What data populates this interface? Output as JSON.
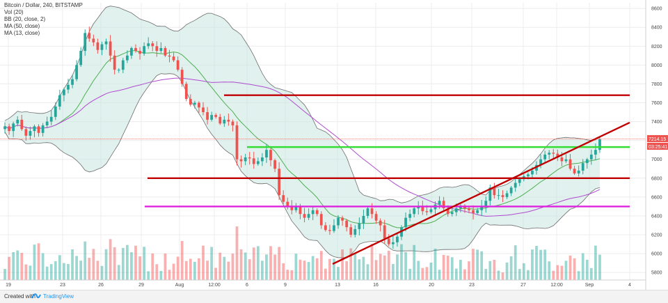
{
  "legend": {
    "symbol": "Bitcoin / Dollar, 240, BITSTAMP",
    "vol": "Vol (20)",
    "bb": "BB (20, close, 2)",
    "ma50": "MA (50, close)",
    "ma13": "MA (13, close)"
  },
  "footer": {
    "created": "Created with",
    "brand": "TradingView"
  },
  "price_label": "7214.15",
  "countdown_label": "03:25:41",
  "colors": {
    "up": "#26a69a",
    "down": "#ef5350",
    "bb_fill": "#c8e6e0",
    "bb_line": "#6e6e6e",
    "ma50": "#b04ad0",
    "ma13": "#4caf50",
    "red_level": "#c00000",
    "green_level": "#33dd33",
    "magenta_level": "#dd22dd",
    "grid": "#ececec"
  },
  "chart_data": {
    "type": "candlestick",
    "title": "Bitcoin / Dollar, 240, BITSTAMP",
    "yaxis_ticks": [
      5800,
      6000,
      6200,
      6400,
      6600,
      6800,
      7000,
      7200,
      7400,
      7600,
      7800,
      8000,
      8200,
      8400,
      8600
    ],
    "ylim": [
      5720,
      8660
    ],
    "xaxis_ticks": [
      "19",
      "23",
      "26",
      "29",
      "Aug",
      "12:00",
      "6",
      "9",
      "13",
      "16",
      "20",
      "23",
      "27",
      "12:00",
      "Sep",
      "4"
    ],
    "bar_count": 142,
    "close_approx": [
      7350,
      7300,
      7380,
      7420,
      7320,
      7250,
      7300,
      7350,
      7280,
      7360,
      7400,
      7450,
      7560,
      7680,
      7740,
      7790,
      7850,
      8000,
      8150,
      8340,
      8280,
      8240,
      8160,
      8220,
      8250,
      8100,
      7950,
      7950,
      8050,
      8100,
      8180,
      8150,
      8120,
      8200,
      8230,
      8200,
      8150,
      8180,
      8100,
      8090,
      8050,
      7950,
      7800,
      7640,
      7580,
      7600,
      7550,
      7500,
      7420,
      7470,
      7450,
      7380,
      7420,
      7400,
      7360,
      7000,
      6980,
      7020,
      7010,
      6950,
      6980,
      7020,
      7100,
      6990,
      6900,
      6620,
      6550,
      6500,
      6460,
      6500,
      6420,
      6380,
      6420,
      6460,
      6420,
      6300,
      6250,
      6240,
      6300,
      6380,
      6350,
      6280,
      6200,
      6260,
      6320,
      6400,
      6480,
      6420,
      6350,
      6300,
      6160,
      6100,
      6120,
      6180,
      6280,
      6380,
      6420,
      6480,
      6500,
      6450,
      6440,
      6470,
      6520,
      6560,
      6480,
      6420,
      6440,
      6480,
      6510,
      6480,
      6460,
      6430,
      6460,
      6500,
      6560,
      6700,
      6620,
      6620,
      6600,
      6640,
      6700,
      6750,
      6790,
      6820,
      6840,
      6880,
      6940,
      7000,
      7050,
      7070,
      7060,
      7020,
      6980,
      7000,
      6900,
      6850,
      6880,
      6960,
      7000,
      7050,
      7100,
      7214
    ],
    "annotations": [
      {
        "type": "horizontal_line",
        "price": 7680,
        "color": "red"
      },
      {
        "type": "horizontal_line",
        "price": 7130,
        "color": "green"
      },
      {
        "type": "horizontal_line",
        "price": 6800,
        "color": "red"
      },
      {
        "type": "horizontal_line",
        "price": 6500,
        "color": "magenta"
      },
      {
        "type": "trend_line",
        "from_price": 5890,
        "to_price": 7390,
        "color": "red"
      }
    ]
  }
}
